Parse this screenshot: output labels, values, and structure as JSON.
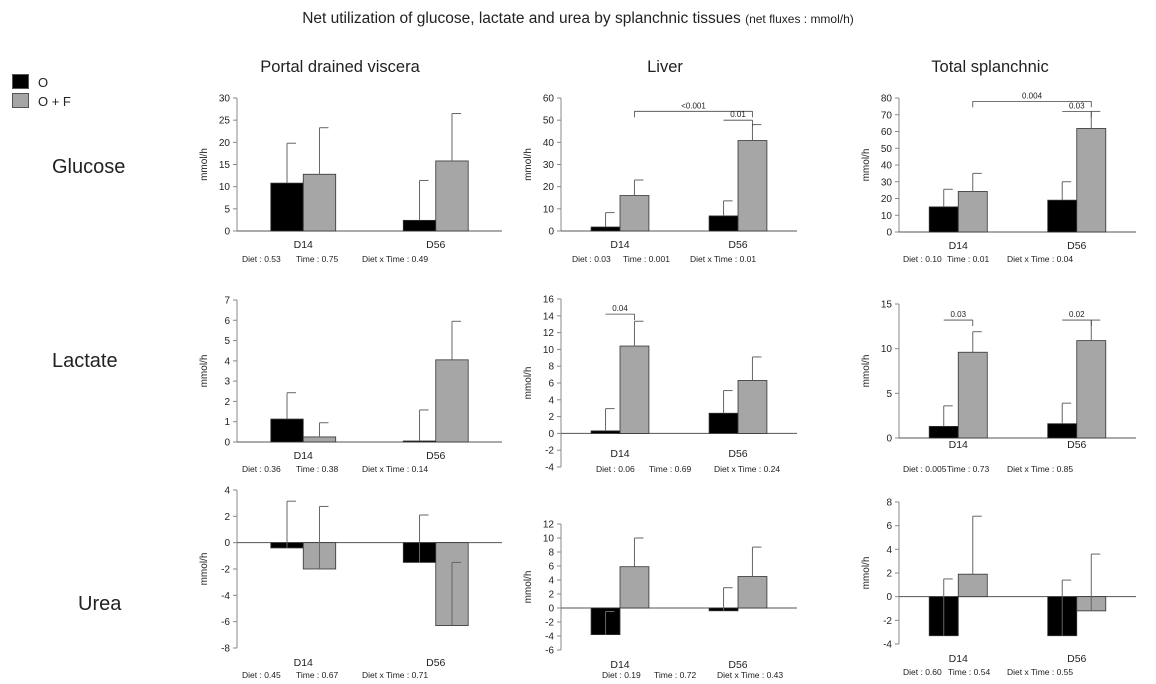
{
  "title": {
    "main": "Net utilization of glucose, lactate and urea by splanchnic tissues",
    "units": "(net fluxes : mmol/h)"
  },
  "columns": [
    "Portal drained viscera",
    "Liver",
    "Total splanchnic"
  ],
  "rows": [
    "Glucose",
    "Lactate",
    "Urea"
  ],
  "legend": [
    {
      "label": "O",
      "color": "#000000"
    },
    {
      "label": "O + F",
      "color": "#a6a6a6"
    }
  ],
  "chart_data": [
    {
      "type": "bar",
      "row": "Glucose",
      "column": "Portal drained viscera",
      "ylabel": "mmol/h",
      "ylim": [
        0,
        30
      ],
      "yticks": [
        0,
        5,
        10,
        15,
        20,
        25,
        30
      ],
      "categories": [
        "D14",
        "D56"
      ],
      "series": [
        {
          "name": "O",
          "values": [
            10.8,
            2.4
          ],
          "errors": [
            9,
            9
          ]
        },
        {
          "name": "O + F",
          "values": [
            12.8,
            15.8
          ],
          "errors": [
            10.5,
            10.7
          ]
        }
      ],
      "stats": [
        "Diet : 0.53",
        "Time : 0.75",
        "Diet x Time : 0.49"
      ],
      "brackets": []
    },
    {
      "type": "bar",
      "row": "Glucose",
      "column": "Liver",
      "ylabel": "mmol/h",
      "ylim": [
        0,
        60
      ],
      "yticks": [
        0,
        10,
        20,
        30,
        40,
        50,
        60
      ],
      "categories": [
        "D14",
        "D56"
      ],
      "series": [
        {
          "name": "O",
          "values": [
            1.8,
            6.8
          ],
          "errors": [
            6.5,
            6.8
          ]
        },
        {
          "name": "O + F",
          "values": [
            16,
            40.8
          ],
          "errors": [
            7,
            7.2
          ]
        }
      ],
      "stats": [
        "Diet : 0.03",
        "Time : 0.001",
        "Diet x Time : 0.01"
      ],
      "brackets": [
        {
          "label": "<0.001",
          "from": [
            0,
            1
          ],
          "to": [
            1,
            1
          ],
          "y": 54
        },
        {
          "label": "0.01",
          "from": [
            1,
            0
          ],
          "to": [
            1,
            1
          ],
          "y": 50
        }
      ]
    },
    {
      "type": "bar",
      "row": "Glucose",
      "column": "Total splanchnic",
      "ylabel": "mmol/h",
      "ylim": [
        0,
        80
      ],
      "yticks": [
        0,
        10,
        20,
        30,
        40,
        50,
        60,
        70,
        80
      ],
      "categories": [
        "D14",
        "D56"
      ],
      "series": [
        {
          "name": "O",
          "values": [
            15,
            19
          ],
          "errors": [
            10.5,
            11
          ]
        },
        {
          "name": "O + F",
          "values": [
            24.2,
            61.8
          ],
          "errors": [
            10.8,
            10.2
          ]
        }
      ],
      "stats": [
        "Diet : 0.10",
        "Time : 0.01",
        "Diet x Time : 0.04"
      ],
      "brackets": [
        {
          "label": "0.004",
          "from": [
            0,
            1
          ],
          "to": [
            1,
            1
          ],
          "y": 78
        },
        {
          "label": "0.03",
          "from": [
            1,
            0
          ],
          "to": [
            1,
            1
          ],
          "y": 72
        }
      ]
    },
    {
      "type": "bar",
      "row": "Lactate",
      "column": "Portal drained viscera",
      "ylabel": "mmol/h",
      "ylim": [
        0,
        7
      ],
      "yticks": [
        0,
        1,
        2,
        3,
        4,
        5,
        6,
        7
      ],
      "categories": [
        "D14",
        "D56"
      ],
      "series": [
        {
          "name": "O",
          "values": [
            1.13,
            0.05
          ],
          "errors": [
            1.3,
            1.53
          ]
        },
        {
          "name": "O + F",
          "values": [
            0.25,
            4.05
          ],
          "errors": [
            0.7,
            1.9
          ]
        }
      ],
      "stats": [
        "Diet : 0.36",
        "Time : 0.38",
        "Diet x Time : 0.14"
      ],
      "brackets": []
    },
    {
      "type": "bar",
      "row": "Lactate",
      "column": "Liver",
      "ylabel": "mmol/h",
      "ylim": [
        -4,
        16
      ],
      "yticks": [
        -4,
        -2,
        0,
        2,
        4,
        6,
        8,
        10,
        12,
        14,
        16
      ],
      "categories": [
        "D14",
        "D56"
      ],
      "series": [
        {
          "name": "O",
          "values": [
            0.3,
            2.4
          ],
          "errors": [
            2.65,
            2.7
          ]
        },
        {
          "name": "O + F",
          "values": [
            10.4,
            6.3
          ],
          "errors": [
            2.95,
            2.8
          ]
        }
      ],
      "stats": [
        "Diet : 0.06",
        "Time : 0.69",
        "Diet x Time : 0.24"
      ],
      "brackets": [
        {
          "label": "0.04",
          "from": [
            0,
            0
          ],
          "to": [
            0,
            1
          ],
          "y": 14.2
        }
      ]
    },
    {
      "type": "bar",
      "row": "Lactate",
      "column": "Total splanchnic",
      "ylabel": "mmol/h",
      "ylim": [
        0,
        15
      ],
      "yticks": [
        0,
        5,
        10,
        15
      ],
      "categories": [
        "D14",
        "D56"
      ],
      "series": [
        {
          "name": "O",
          "values": [
            1.3,
            1.6
          ],
          "errors": [
            2.3,
            2.3
          ]
        },
        {
          "name": "O + F",
          "values": [
            9.6,
            10.9
          ],
          "errors": [
            2.3,
            2.3
          ]
        }
      ],
      "stats": [
        "Diet : 0.005",
        "Time : 0.73",
        "Diet x Time : 0.85"
      ],
      "brackets": [
        {
          "label": "0.03",
          "from": [
            0,
            0
          ],
          "to": [
            0,
            1
          ],
          "y": 13.2
        },
        {
          "label": "0.02",
          "from": [
            1,
            0
          ],
          "to": [
            1,
            1
          ],
          "y": 13.2
        }
      ]
    },
    {
      "type": "bar",
      "row": "Urea",
      "column": "Portal drained viscera",
      "ylabel": "mmol/h",
      "ylim": [
        -8,
        4
      ],
      "yticks": [
        -8,
        -6,
        -4,
        -2,
        0,
        2,
        4
      ],
      "categories": [
        "D14",
        "D56"
      ],
      "series": [
        {
          "name": "O",
          "values": [
            -0.4,
            -1.5
          ],
          "errors": [
            3.55,
            3.6
          ]
        },
        {
          "name": "O + F",
          "values": [
            -2,
            -6.3
          ],
          "errors": [
            4.75,
            4.8
          ]
        }
      ],
      "stats": [
        "Diet : 0.45",
        "Time : 0.67",
        "Diet x Time : 0.71"
      ],
      "brackets": []
    },
    {
      "type": "bar",
      "row": "Urea",
      "column": "Liver",
      "ylabel": "mmol/h",
      "ylim": [
        -6,
        12
      ],
      "yticks": [
        -6,
        -4,
        -2,
        0,
        2,
        4,
        6,
        8,
        10,
        12
      ],
      "categories": [
        "D14",
        "D56"
      ],
      "series": [
        {
          "name": "O",
          "values": [
            -3.8,
            -0.4
          ],
          "errors": [
            3.3,
            3.3
          ]
        },
        {
          "name": "O + F",
          "values": [
            5.9,
            4.5
          ],
          "errors": [
            4.1,
            4.2
          ]
        }
      ],
      "stats": [
        "Diet : 0.19",
        "Time : 0.72",
        "Diet x Time : 0.43"
      ],
      "brackets": []
    },
    {
      "type": "bar",
      "row": "Urea",
      "column": "Total splanchnic",
      "ylabel": "mmol/h",
      "ylim": [
        -4,
        8
      ],
      "yticks": [
        -4,
        -2,
        0,
        2,
        4,
        6,
        8
      ],
      "categories": [
        "D14",
        "D56"
      ],
      "series": [
        {
          "name": "O",
          "values": [
            -3.3,
            -3.3
          ],
          "errors": [
            4.8,
            4.7
          ]
        },
        {
          "name": "O + F",
          "values": [
            1.9,
            -1.2
          ],
          "errors": [
            4.9,
            4.8
          ]
        }
      ],
      "stats": [
        "Diet : 0.60",
        "Time : 0.54",
        "Diet x Time : 0.55"
      ],
      "brackets": []
    }
  ]
}
